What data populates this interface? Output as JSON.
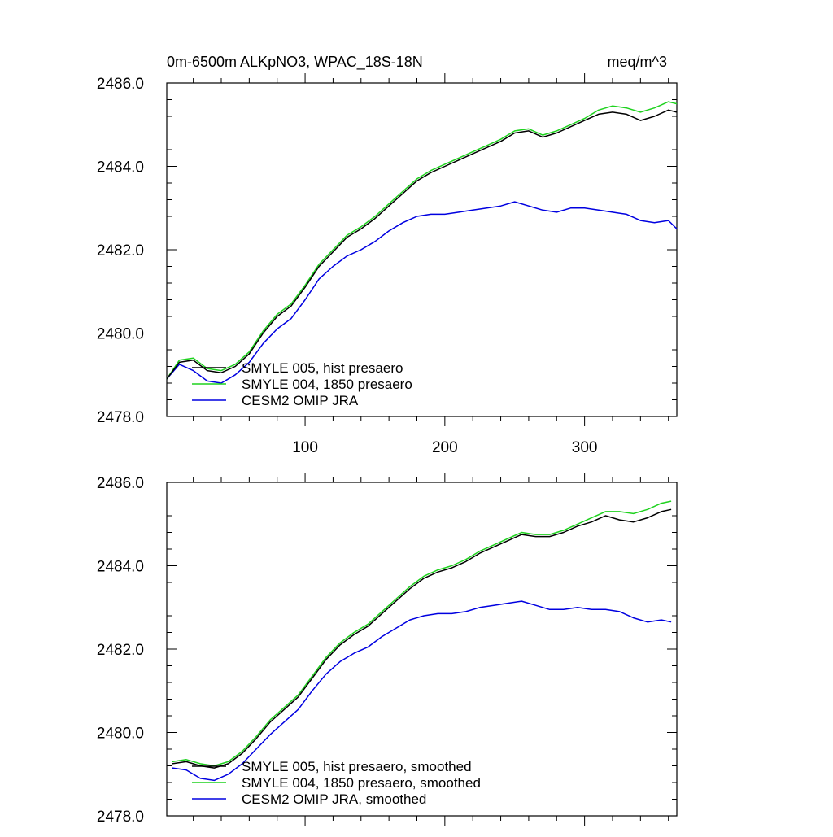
{
  "header": {
    "title": "0m-6500m ALKpNO3, WPAC_18S-18N",
    "units": "meq/m^3"
  },
  "colors": {
    "smyle005": "#000000",
    "smyle004": "#1fd21f",
    "omip": "#0000e0"
  },
  "chart_data": [
    {
      "type": "line",
      "panel": "top",
      "title": "0m-6500m ALKpNO3, WPAC_18S-18N",
      "units_label": "meq/m^3",
      "xlim": [
        1,
        366
      ],
      "ylim": [
        2478.0,
        2486.0
      ],
      "x_ticks": [
        100,
        200,
        300
      ],
      "x_tick_labels": [
        "100",
        "200",
        "300"
      ],
      "y_ticks": [
        2478.0,
        2480.0,
        2482.0,
        2484.0,
        2486.0
      ],
      "y_tick_labels": [
        "2478.0",
        "2480.0",
        "2482.0",
        "2484.0",
        "2486.0"
      ],
      "legend_position": "bottom-left",
      "series": [
        {
          "name": "SMYLE 005, hist presaero",
          "color": "#000000",
          "x": [
            1,
            10,
            20,
            30,
            40,
            50,
            60,
            70,
            80,
            90,
            100,
            110,
            120,
            130,
            140,
            150,
            160,
            170,
            180,
            190,
            200,
            210,
            220,
            230,
            240,
            250,
            260,
            270,
            280,
            290,
            300,
            310,
            320,
            330,
            340,
            350,
            360,
            366
          ],
          "y": [
            2478.9,
            2479.3,
            2479.35,
            2479.1,
            2479.05,
            2479.2,
            2479.5,
            2480.0,
            2480.4,
            2480.65,
            2481.1,
            2481.6,
            2481.95,
            2482.3,
            2482.5,
            2482.75,
            2483.05,
            2483.35,
            2483.65,
            2483.85,
            2484.0,
            2484.15,
            2484.3,
            2484.45,
            2484.6,
            2484.8,
            2484.85,
            2484.7,
            2484.8,
            2484.95,
            2485.1,
            2485.25,
            2485.3,
            2485.25,
            2485.1,
            2485.2,
            2485.35,
            2485.3
          ]
        },
        {
          "name": "SMYLE 004, 1850 presaero",
          "color": "#1fd21f",
          "x": [
            1,
            10,
            20,
            30,
            40,
            50,
            60,
            70,
            80,
            90,
            100,
            110,
            120,
            130,
            140,
            150,
            160,
            170,
            180,
            190,
            200,
            210,
            220,
            230,
            240,
            250,
            260,
            270,
            280,
            290,
            300,
            310,
            320,
            330,
            340,
            350,
            360,
            366
          ],
          "y": [
            2478.9,
            2479.35,
            2479.4,
            2479.15,
            2479.1,
            2479.25,
            2479.55,
            2480.05,
            2480.45,
            2480.7,
            2481.15,
            2481.65,
            2482.0,
            2482.35,
            2482.55,
            2482.8,
            2483.1,
            2483.4,
            2483.7,
            2483.9,
            2484.05,
            2484.2,
            2484.35,
            2484.5,
            2484.65,
            2484.85,
            2484.9,
            2484.75,
            2484.85,
            2485.0,
            2485.15,
            2485.35,
            2485.45,
            2485.4,
            2485.3,
            2485.4,
            2485.55,
            2485.5
          ]
        },
        {
          "name": "CESM2 OMIP JRA",
          "color": "#0000e0",
          "x": [
            1,
            10,
            20,
            30,
            40,
            50,
            60,
            70,
            80,
            90,
            100,
            110,
            120,
            130,
            140,
            150,
            160,
            170,
            180,
            190,
            200,
            210,
            220,
            230,
            240,
            250,
            260,
            270,
            280,
            290,
            300,
            310,
            320,
            330,
            340,
            350,
            360,
            366
          ],
          "y": [
            2478.9,
            2479.25,
            2479.1,
            2478.85,
            2478.8,
            2479.0,
            2479.3,
            2479.75,
            2480.1,
            2480.35,
            2480.8,
            2481.3,
            2481.6,
            2481.85,
            2482.0,
            2482.2,
            2482.45,
            2482.65,
            2482.8,
            2482.85,
            2482.85,
            2482.9,
            2482.95,
            2483.0,
            2483.05,
            2483.15,
            2483.05,
            2482.95,
            2482.9,
            2483.0,
            2483.0,
            2482.95,
            2482.9,
            2482.85,
            2482.7,
            2482.65,
            2482.7,
            2482.5
          ]
        }
      ]
    },
    {
      "type": "line",
      "panel": "bottom",
      "xlim": [
        1,
        366
      ],
      "ylim": [
        2478.0,
        2486.0
      ],
      "x_ticks": [
        100,
        200,
        300
      ],
      "y_ticks": [
        2478.0,
        2480.0,
        2482.0,
        2484.0,
        2486.0
      ],
      "y_tick_labels": [
        "2478.0",
        "2480.0",
        "2482.0",
        "2484.0",
        "2486.0"
      ],
      "legend_position": "bottom-left",
      "series": [
        {
          "name": "SMYLE 005, hist presaero, smoothed",
          "color": "#000000",
          "x": [
            5,
            15,
            25,
            35,
            45,
            55,
            65,
            75,
            85,
            95,
            105,
            115,
            125,
            135,
            145,
            155,
            165,
            175,
            185,
            195,
            205,
            215,
            225,
            235,
            245,
            255,
            265,
            275,
            285,
            295,
            305,
            315,
            325,
            335,
            345,
            355,
            362
          ],
          "y": [
            2479.25,
            2479.3,
            2479.2,
            2479.15,
            2479.25,
            2479.5,
            2479.85,
            2480.25,
            2480.55,
            2480.85,
            2481.3,
            2481.75,
            2482.1,
            2482.35,
            2482.55,
            2482.85,
            2483.15,
            2483.45,
            2483.7,
            2483.85,
            2483.95,
            2484.1,
            2484.3,
            2484.45,
            2484.6,
            2484.75,
            2484.7,
            2484.7,
            2484.8,
            2484.95,
            2485.05,
            2485.2,
            2485.1,
            2485.05,
            2485.15,
            2485.3,
            2485.35
          ]
        },
        {
          "name": "SMYLE 004, 1850 presaero, smoothed",
          "color": "#1fd21f",
          "x": [
            5,
            15,
            25,
            35,
            45,
            55,
            65,
            75,
            85,
            95,
            105,
            115,
            125,
            135,
            145,
            155,
            165,
            175,
            185,
            195,
            205,
            215,
            225,
            235,
            245,
            255,
            265,
            275,
            285,
            295,
            305,
            315,
            325,
            335,
            345,
            355,
            362
          ],
          "y": [
            2479.3,
            2479.35,
            2479.25,
            2479.2,
            2479.3,
            2479.55,
            2479.9,
            2480.3,
            2480.6,
            2480.9,
            2481.35,
            2481.8,
            2482.15,
            2482.4,
            2482.6,
            2482.9,
            2483.2,
            2483.5,
            2483.75,
            2483.9,
            2484.0,
            2484.15,
            2484.35,
            2484.5,
            2484.65,
            2484.8,
            2484.75,
            2484.75,
            2484.85,
            2485.0,
            2485.15,
            2485.3,
            2485.3,
            2485.25,
            2485.35,
            2485.5,
            2485.55
          ]
        },
        {
          "name": "CESM2 OMIP JRA, smoothed",
          "color": "#0000e0",
          "x": [
            5,
            15,
            25,
            35,
            45,
            55,
            65,
            75,
            85,
            95,
            105,
            115,
            125,
            135,
            145,
            155,
            165,
            175,
            185,
            195,
            205,
            215,
            225,
            235,
            245,
            255,
            265,
            275,
            285,
            295,
            305,
            315,
            325,
            335,
            345,
            355,
            362
          ],
          "y": [
            2479.15,
            2479.1,
            2478.9,
            2478.85,
            2479.0,
            2479.25,
            2479.6,
            2479.95,
            2480.25,
            2480.55,
            2481.0,
            2481.4,
            2481.7,
            2481.9,
            2482.05,
            2482.3,
            2482.5,
            2482.7,
            2482.8,
            2482.85,
            2482.85,
            2482.9,
            2483.0,
            2483.05,
            2483.1,
            2483.15,
            2483.05,
            2482.95,
            2482.95,
            2483.0,
            2482.95,
            2482.95,
            2482.9,
            2482.75,
            2482.65,
            2482.7,
            2482.65
          ]
        }
      ]
    }
  ]
}
